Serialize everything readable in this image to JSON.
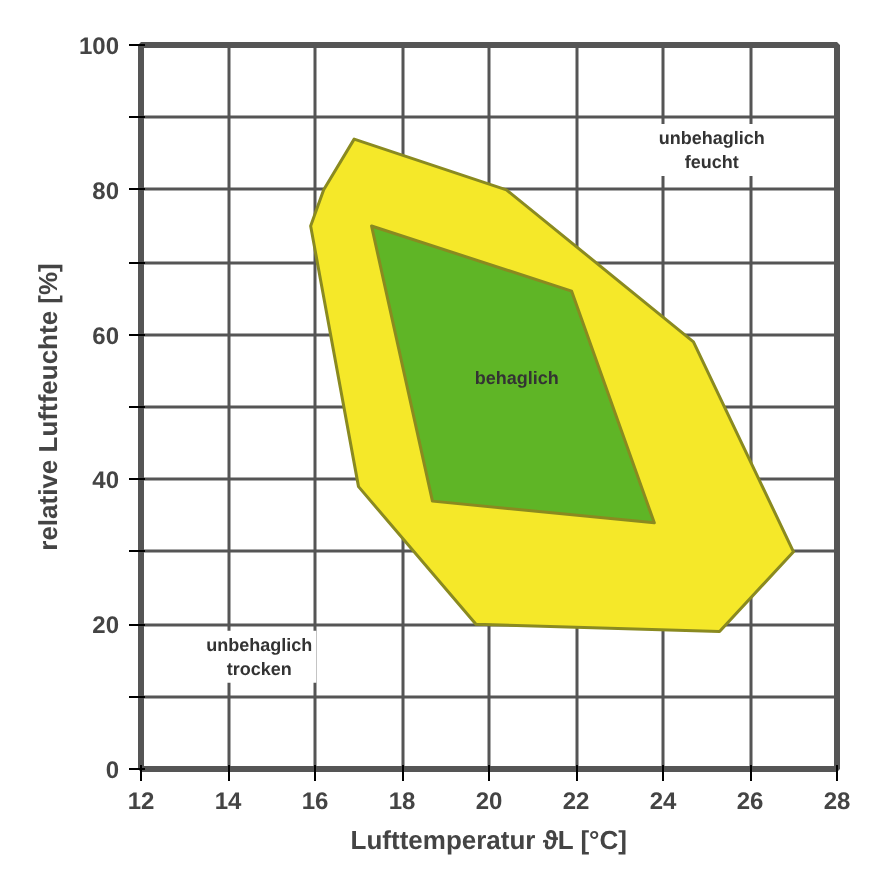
{
  "chart_data": {
    "type": "area",
    "xlabel": "Lufttemperatur ϑL [°C]",
    "ylabel": "relative Luftfeuchte [%]",
    "xlim": [
      12,
      28
    ],
    "ylim": [
      0,
      100
    ],
    "xticks": [
      12,
      14,
      16,
      18,
      20,
      22,
      24,
      26,
      28
    ],
    "yticks": [
      0,
      {
        "value": 10,
        "label": null
      },
      20,
      {
        "value": 30,
        "label": null
      },
      40,
      {
        "value": 50,
        "label": null
      },
      60,
      {
        "value": 70,
        "label": null
      },
      80,
      {
        "value": 90,
        "label": null
      },
      100
    ],
    "grid": true,
    "series": [
      {
        "color": "#f5e829",
        "x": [
          16.9,
          20.4,
          24.7,
          27.0,
          25.3,
          19.7,
          17.0,
          15.9,
          16.2
        ],
        "values": [
          87,
          80,
          59,
          30,
          19,
          20,
          39,
          75,
          80
        ]
      },
      {
        "color": "#5fb526",
        "x": [
          17.3,
          21.9,
          23.8,
          18.7
        ],
        "values": [
          75,
          66,
          34,
          37
        ]
      }
    ],
    "annotations": [
      "unbehaglich feucht",
      "behaglich",
      "unbehaglich trocken"
    ]
  }
}
